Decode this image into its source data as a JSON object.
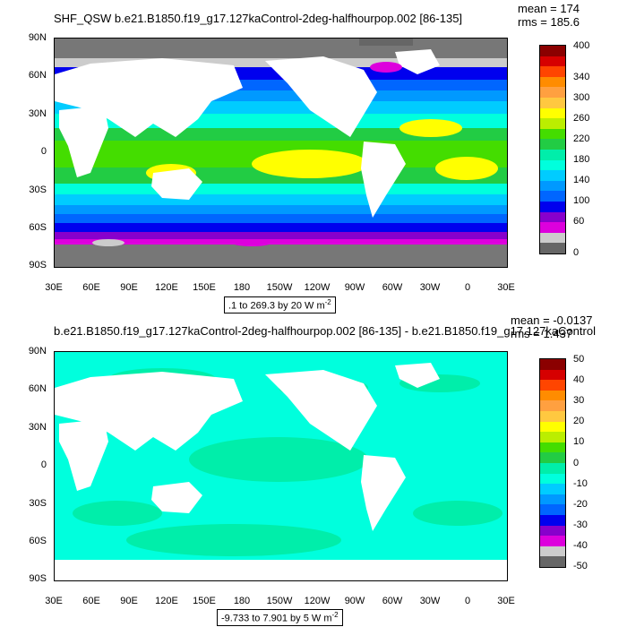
{
  "chart_data": [
    {
      "type": "heatmap",
      "title": "SHF_QSW b.e21.B1850.f19_g17.127kaControl-2deg-halfhourpop.002 [86-135]",
      "stats": {
        "mean": "mean = 174",
        "rms": "rms = 185.6"
      },
      "lat_labels": [
        "90N",
        "60N",
        "30N",
        "0",
        "30S",
        "60S",
        "90S"
      ],
      "lon_labels": [
        "30E",
        "60E",
        "90E",
        "120E",
        "150E",
        "180",
        "150W",
        "120W",
        "90W",
        "60W",
        "30W",
        "0",
        "30E"
      ],
      "range_text": ".1 to 269.3 by 20  W m",
      "range_superscript": "-2",
      "colorbar": {
        "labels": [
          "400",
          "340",
          "300",
          "260",
          "220",
          "180",
          "140",
          "100",
          "60",
          "0"
        ],
        "colors": [
          "#8b0000",
          "#d60000",
          "#ff4500",
          "#ff8c00",
          "#ffa040",
          "#ffc840",
          "#ffff00",
          "#bbee00",
          "#44dd00",
          "#22cc44",
          "#00eeaa",
          "#00ffdd",
          "#00ccff",
          "#0099ff",
          "#0066ff",
          "#0000ee",
          "#8800cc",
          "#dd00dd",
          "#cccccc",
          "#666666"
        ]
      }
    },
    {
      "type": "heatmap",
      "title": "b.e21.B1850.f19_g17.127kaControl-2deg-halfhourpop.002 [86-135] - b.e21.B1850.f19_g17.127kaControl",
      "stats": {
        "mean": "mean = -0.0137",
        "rms": "rms = 1.437"
      },
      "lat_labels": [
        "90N",
        "60N",
        "30N",
        "0",
        "30S",
        "60S",
        "90S"
      ],
      "lon_labels": [
        "30E",
        "60E",
        "90E",
        "120E",
        "150E",
        "180",
        "150W",
        "120W",
        "90W",
        "60W",
        "30W",
        "0",
        "30E"
      ],
      "range_text": "-9.733 to 7.901 by 5  W m",
      "range_superscript": "-2",
      "colorbar": {
        "labels": [
          "50",
          "40",
          "30",
          "20",
          "10",
          "0",
          "-10",
          "-20",
          "-30",
          "-40",
          "-50"
        ],
        "colors": [
          "#8b0000",
          "#d60000",
          "#ff4500",
          "#ff8c00",
          "#ffa040",
          "#ffc840",
          "#ffff00",
          "#bbee00",
          "#44dd00",
          "#22cc44",
          "#00eeaa",
          "#00ffdd",
          "#00ccff",
          "#0099ff",
          "#0066ff",
          "#0000ee",
          "#8800cc",
          "#dd00dd",
          "#cccccc",
          "#666666"
        ]
      }
    }
  ]
}
